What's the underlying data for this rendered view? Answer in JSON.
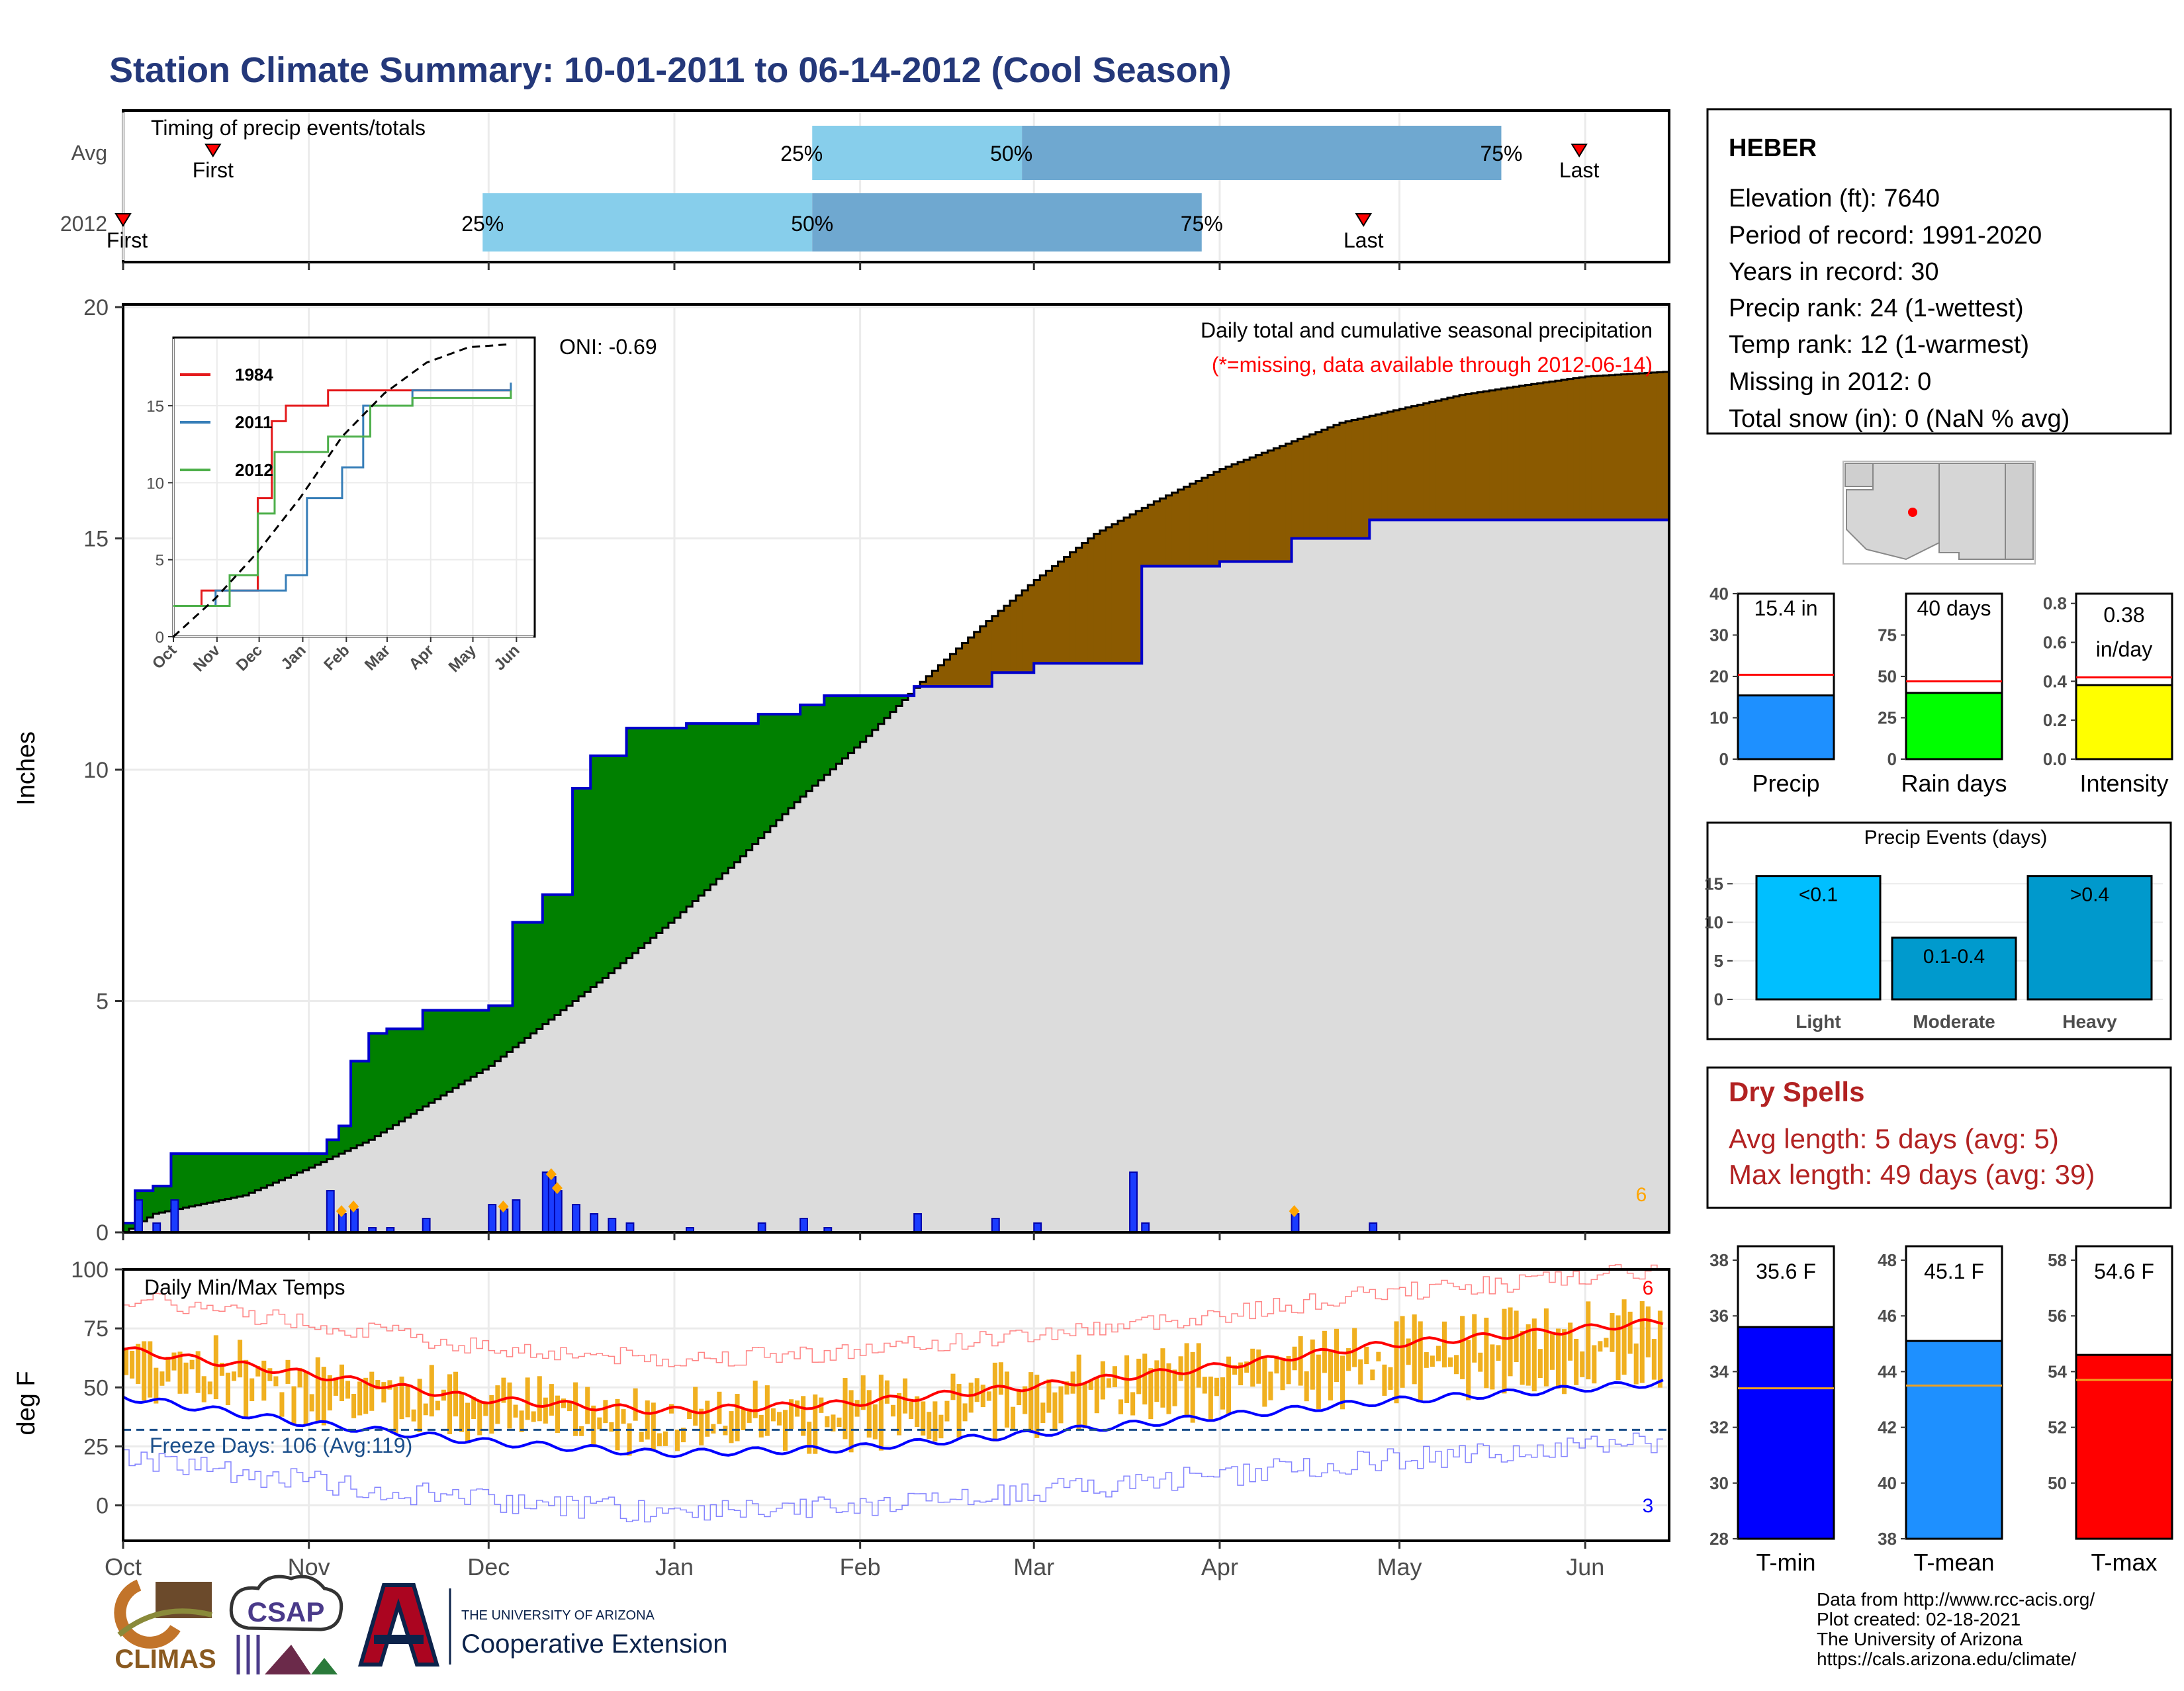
{
  "title": "Station Climate Summary: 10-01-2011 to 06-14-2012 (Cool Season)",
  "colors": {
    "title": "#24387a",
    "precip_area": "#dcdcdc",
    "above_avg": "#008000",
    "below_avg": "#8b5a00",
    "cum_line": "#0000cc",
    "daily_bar": "#1a3cff",
    "quart_light": "#87ceeb",
    "quart_dark": "#6fa8d0",
    "tmax": "#ff0000",
    "tmin": "#0000ff",
    "temp_bar": "#f0b020",
    "dry": "#b22222"
  },
  "months": [
    "Oct",
    "Nov",
    "Dec",
    "Jan",
    "Feb",
    "Mar",
    "Apr",
    "May",
    "Jun"
  ],
  "timing": {
    "label": "Timing of precip events/totals",
    "rows": [
      {
        "name": "Avg",
        "first_label": "First",
        "last_label": "Last",
        "q25": "25%",
        "q50": "50%",
        "q75": "75%"
      },
      {
        "name": "2012",
        "first_label": "First",
        "last_label": "Last",
        "q25": "25%",
        "q50": "50%",
        "q75": "75%"
      }
    ]
  },
  "chart_data": [
    {
      "id": "timing",
      "type": "bar",
      "title": "Timing of precip events/totals",
      "categories": [
        "Avg",
        "2012"
      ],
      "first_day": [
        15,
        0
      ],
      "q25_day": [
        115,
        60
      ],
      "q50_day": [
        150,
        115
      ],
      "q75_day": [
        230,
        180
      ],
      "last_day": [
        243,
        207
      ]
    },
    {
      "id": "precip",
      "type": "area",
      "title": "Daily total and cumulative seasonal precipitation",
      "subtitle": "(*=missing, data available through 2012-06-14)",
      "oni": "ONI: -0.69",
      "ylabel": "Inches",
      "ylim": [
        0,
        20
      ],
      "yticks": [
        0,
        5,
        10,
        15,
        20
      ],
      "corner_label": "6",
      "avg_cum": {
        "date": [
          "2011-10-01",
          "2011-10-06",
          "2011-10-21",
          "2011-11-01",
          "2011-11-11",
          "2011-11-21",
          "2011-12-01",
          "2011-12-11",
          "2011-12-21",
          "2012-01-01",
          "2012-01-11",
          "2012-01-21",
          "2012-02-01",
          "2012-02-11",
          "2012-02-21",
          "2012-03-01",
          "2012-03-11",
          "2012-03-21",
          "2012-04-01",
          "2012-04-11",
          "2012-04-21",
          "2012-05-01",
          "2012-05-11",
          "2012-05-21",
          "2012-06-01",
          "2012-06-14"
        ],
        "inches": [
          0,
          0.4,
          0.8,
          1.4,
          2.0,
          2.8,
          3.6,
          4.6,
          5.6,
          6.8,
          8.0,
          9.3,
          10.6,
          11.9,
          13.1,
          14.1,
          15.1,
          15.8,
          16.5,
          17.0,
          17.5,
          17.8,
          18.1,
          18.3,
          18.5,
          18.6
        ]
      },
      "cum_2012": {
        "date": [
          "2011-10-01",
          "2011-10-03",
          "2011-10-06",
          "2011-10-09",
          "2011-11-04",
          "2011-11-06",
          "2011-11-08",
          "2011-11-11",
          "2011-11-14",
          "2011-11-20",
          "2011-12-01",
          "2011-12-05",
          "2011-12-10",
          "2011-12-15",
          "2011-12-18",
          "2011-12-24",
          "2012-01-03",
          "2012-01-15",
          "2012-01-22",
          "2012-01-26",
          "2012-02-10",
          "2012-02-23",
          "2012-03-01",
          "2012-03-08",
          "2012-03-17",
          "2012-03-19",
          "2012-04-01",
          "2012-04-13",
          "2012-04-26",
          "2012-05-01",
          "2012-06-14"
        ],
        "inches": [
          0.2,
          0.9,
          1.0,
          1.7,
          2.0,
          2.3,
          3.7,
          4.3,
          4.4,
          4.8,
          4.9,
          6.7,
          7.3,
          9.6,
          10.3,
          10.9,
          11.0,
          11.2,
          11.4,
          11.6,
          11.8,
          12.1,
          12.3,
          12.3,
          12.3,
          14.4,
          14.5,
          15.0,
          15.4,
          15.4,
          15.4
        ]
      },
      "daily_2012": {
        "date": [
          "2011-10-03",
          "2011-10-06",
          "2011-10-09",
          "2011-11-04",
          "2011-11-06",
          "2011-11-08",
          "2011-11-11",
          "2011-11-14",
          "2011-11-20",
          "2011-12-01",
          "2011-12-03",
          "2011-12-05",
          "2011-12-10",
          "2011-12-11",
          "2011-12-12",
          "2011-12-15",
          "2011-12-18",
          "2011-12-21",
          "2011-12-24",
          "2012-01-03",
          "2012-01-15",
          "2012-01-22",
          "2012-01-26",
          "2012-02-10",
          "2012-02-23",
          "2012-03-01",
          "2012-03-17",
          "2012-03-19",
          "2012-04-13",
          "2012-04-26"
        ],
        "inches": [
          0.7,
          0.2,
          0.7,
          0.9,
          0.4,
          0.5,
          0.1,
          0.1,
          0.3,
          0.6,
          0.5,
          0.7,
          1.3,
          1.2,
          0.9,
          0.6,
          0.4,
          0.3,
          0.2,
          0.1,
          0.2,
          0.3,
          0.1,
          0.4,
          0.3,
          0.2,
          1.3,
          0.2,
          0.4,
          0.2
        ]
      },
      "marker_dates": [
        "2011-11-06",
        "2011-11-08",
        "2011-12-03",
        "2011-12-11",
        "2011-12-12",
        "2012-04-13"
      ]
    },
    {
      "id": "inset",
      "type": "line",
      "xticks": [
        "Oct",
        "Nov",
        "Dec",
        "Jan",
        "Feb",
        "Mar",
        "Apr",
        "May",
        "Jun"
      ],
      "yticks": [
        0,
        5,
        10,
        15
      ],
      "ylim": [
        0,
        19
      ],
      "series": [
        {
          "name": "1984",
          "color": "#e41a1c",
          "x": [
            0,
            20,
            60,
            70,
            80,
            110,
            130,
            240
          ],
          "y": [
            2,
            3,
            9,
            14,
            15,
            16,
            16,
            16
          ]
        },
        {
          "name": "2011",
          "color": "#377eb8",
          "x": [
            0,
            30,
            80,
            95,
            120,
            135,
            150,
            170,
            240
          ],
          "y": [
            2,
            3,
            4,
            9,
            11,
            15,
            15,
            16,
            16.5
          ]
        },
        {
          "name": "2012",
          "color": "#4daf4a",
          "x": [
            0,
            40,
            60,
            72,
            85,
            110,
            140,
            170,
            240
          ],
          "y": [
            2,
            4,
            8,
            12,
            12,
            13,
            15,
            15.5,
            16
          ]
        },
        {
          "name": "",
          "color": "#000000",
          "x": [
            0,
            30,
            60,
            90,
            120,
            150,
            180,
            210,
            240
          ],
          "y": [
            0,
            2.5,
            5.5,
            9,
            13,
            15.8,
            17.8,
            18.8,
            19
          ]
        }
      ]
    },
    {
      "id": "temps",
      "type": "line",
      "title": "Daily Min/Max Temps",
      "ylabel": "deg F",
      "ylim": [
        -15,
        100
      ],
      "yticks": [
        0,
        25,
        50,
        75,
        100
      ],
      "freeze_text": "Freeze Days: 106 (Avg:119)",
      "freeze_line": 32,
      "top_label": "6",
      "bottom_label": "3",
      "avg_tmax_x": [
        0,
        30,
        60,
        90,
        120,
        150,
        180,
        210,
        240,
        257
      ],
      "avg_tmax_y": [
        66,
        56,
        45,
        40,
        43,
        50,
        58,
        68,
        74,
        78
      ],
      "avg_tmin_x": [
        0,
        30,
        60,
        90,
        120,
        150,
        180,
        210,
        240,
        257
      ],
      "avg_tmin_y": [
        46,
        35,
        27,
        22,
        24,
        30,
        37,
        44,
        49,
        52
      ]
    },
    {
      "id": "gauges_precip",
      "type": "bar",
      "categories": [
        "Precip",
        "Rain days",
        "Intensity"
      ],
      "values": [
        15.4,
        40,
        0.38
      ],
      "avg": [
        20.4,
        47,
        0.42
      ],
      "ymax": [
        40,
        100,
        0.85
      ],
      "labels": [
        "15.4 in",
        "40 days",
        "0.38 in/day"
      ],
      "ticks": [
        [
          0,
          10,
          20,
          30,
          40
        ],
        [
          0,
          25,
          50,
          75
        ],
        [
          "0.0",
          "0.2",
          "0.4",
          "0.6",
          "0.8"
        ]
      ],
      "colors": [
        "#1e90ff",
        "#00ff00",
        "#ffff00"
      ]
    },
    {
      "id": "precip_events",
      "type": "bar",
      "title": "Precip Events (days)",
      "categories": [
        "Light",
        "Moderate",
        "Heavy"
      ],
      "values": [
        16,
        8,
        16
      ],
      "bar_labels": [
        "<0.1",
        "0.1-0.4",
        ">0.4"
      ],
      "ylim": [
        0,
        17
      ],
      "yticks": [
        0,
        5,
        10,
        15
      ],
      "colors": [
        "#00bfff",
        "#009acd",
        "#0099cc"
      ]
    },
    {
      "id": "gauges_temp",
      "type": "bar",
      "categories": [
        "T-min",
        "T-mean",
        "T-max"
      ],
      "values": [
        35.6,
        45.1,
        54.6
      ],
      "avg": [
        33.4,
        43.5,
        53.7
      ],
      "ylim": [
        [
          28,
          38.5
        ],
        [
          38,
          48.5
        ],
        [
          48,
          58.5
        ]
      ],
      "labels": [
        "35.6 F",
        "45.1 F",
        "54.6 F"
      ],
      "ticks": [
        [
          28,
          30,
          32,
          34,
          36,
          38
        ],
        [
          38,
          40,
          42,
          44,
          46,
          48
        ],
        [
          50,
          52,
          54,
          56,
          58
        ]
      ],
      "colors": [
        "#0000ff",
        "#1e90ff",
        "#ff0000"
      ]
    }
  ],
  "station": {
    "name": "HEBER",
    "elevation": "Elevation (ft): 7640",
    "period": "Period of record: 1991-2020",
    "years": "Years in record: 30",
    "precip_rank": "Precip rank: 24 (1-wettest)",
    "temp_rank": "Temp rank: 12 (1-warmest)",
    "missing": "Missing in 2012: 0",
    "snow": "Total snow (in): 0 (NaN % avg)"
  },
  "dry_spells": {
    "title": "Dry Spells",
    "avg": "Avg length: 5 days (avg: 5)",
    "max": "Max length: 49 days (avg: 39)"
  },
  "footer": {
    "line1": "Data from http://www.rcc-acis.org/",
    "line2": "Plot created: 02-18-2021",
    "line3": "The University of Arizona",
    "line4": "https://cals.arizona.edu/climate/"
  },
  "logos": {
    "climas": "CLIMAS",
    "csap": "CSAP",
    "ua_small": "THE UNIVERSITY OF ARIZONA",
    "ua_big": "Cooperative Extension"
  }
}
